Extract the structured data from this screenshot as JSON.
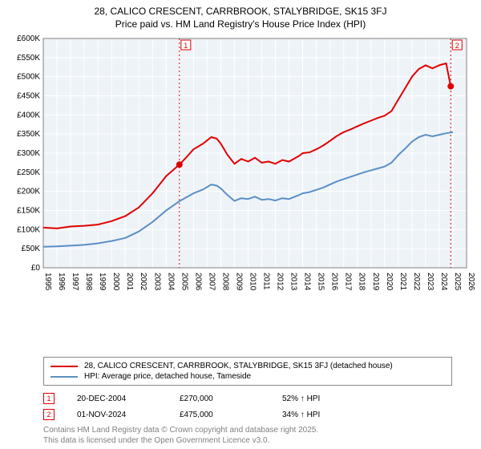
{
  "title_line1": "28, CALICO CRESCENT, CARRBROOK, STALYBRIDGE, SK15 3FJ",
  "title_line2": "Price paid vs. HM Land Registry's House Price Index (HPI)",
  "chart": {
    "type": "line",
    "background_color": "#ffffff",
    "plot_background_color": "#eef3f8",
    "grid_color": "#ffffff",
    "axis_color": "#808080",
    "x": {
      "min": 1995,
      "max": 2026,
      "ticks": [
        1995,
        1996,
        1997,
        1998,
        1999,
        2000,
        2001,
        2002,
        2003,
        2004,
        2005,
        2006,
        2007,
        2008,
        2009,
        2010,
        2011,
        2012,
        2013,
        2014,
        2015,
        2016,
        2017,
        2018,
        2019,
        2020,
        2021,
        2022,
        2023,
        2024,
        2025,
        2026
      ]
    },
    "y": {
      "min": 0,
      "max": 600000,
      "ticks": [
        0,
        50000,
        100000,
        150000,
        200000,
        250000,
        300000,
        350000,
        400000,
        450000,
        500000,
        550000,
        600000
      ],
      "tick_labels": [
        "£0",
        "£50K",
        "£100K",
        "£150K",
        "£200K",
        "£250K",
        "£300K",
        "£350K",
        "£400K",
        "£450K",
        "£500K",
        "£550K",
        "£600K"
      ]
    },
    "series": [
      {
        "id": "property",
        "color": "#e00000",
        "line_width": 2,
        "points": [
          [
            1995,
            105000
          ],
          [
            1996,
            103000
          ],
          [
            1997,
            108000
          ],
          [
            1998,
            110000
          ],
          [
            1999,
            113000
          ],
          [
            2000,
            122000
          ],
          [
            2001,
            135000
          ],
          [
            2002,
            158000
          ],
          [
            2003,
            195000
          ],
          [
            2004,
            240000
          ],
          [
            2004.97,
            270000
          ],
          [
            2005.5,
            290000
          ],
          [
            2006,
            310000
          ],
          [
            2006.7,
            325000
          ],
          [
            2007.3,
            342000
          ],
          [
            2007.7,
            338000
          ],
          [
            2008,
            325000
          ],
          [
            2008.5,
            295000
          ],
          [
            2009,
            272000
          ],
          [
            2009.5,
            285000
          ],
          [
            2010,
            278000
          ],
          [
            2010.5,
            288000
          ],
          [
            2011,
            275000
          ],
          [
            2011.5,
            278000
          ],
          [
            2012,
            272000
          ],
          [
            2012.5,
            282000
          ],
          [
            2013,
            278000
          ],
          [
            2013.7,
            292000
          ],
          [
            2014,
            300000
          ],
          [
            2014.5,
            302000
          ],
          [
            2015,
            310000
          ],
          [
            2015.5,
            320000
          ],
          [
            2016,
            332000
          ],
          [
            2016.5,
            345000
          ],
          [
            2017,
            355000
          ],
          [
            2017.5,
            362000
          ],
          [
            2018,
            370000
          ],
          [
            2018.5,
            378000
          ],
          [
            2019,
            385000
          ],
          [
            2019.5,
            392000
          ],
          [
            2020,
            398000
          ],
          [
            2020.5,
            410000
          ],
          [
            2021,
            440000
          ],
          [
            2021.5,
            470000
          ],
          [
            2022,
            500000
          ],
          [
            2022.5,
            520000
          ],
          [
            2023,
            530000
          ],
          [
            2023.5,
            522000
          ],
          [
            2024,
            530000
          ],
          [
            2024.5,
            535000
          ],
          [
            2024.84,
            475000
          ]
        ]
      },
      {
        "id": "hpi",
        "color": "#5b8fc7",
        "line_width": 2,
        "points": [
          [
            1995,
            55000
          ],
          [
            1996,
            56000
          ],
          [
            1997,
            58000
          ],
          [
            1998,
            60000
          ],
          [
            1999,
            64000
          ],
          [
            2000,
            70000
          ],
          [
            2001,
            78000
          ],
          [
            2002,
            95000
          ],
          [
            2003,
            120000
          ],
          [
            2004,
            150000
          ],
          [
            2005,
            175000
          ],
          [
            2006,
            195000
          ],
          [
            2006.7,
            205000
          ],
          [
            2007.3,
            218000
          ],
          [
            2007.7,
            215000
          ],
          [
            2008,
            208000
          ],
          [
            2008.5,
            190000
          ],
          [
            2009,
            175000
          ],
          [
            2009.5,
            182000
          ],
          [
            2010,
            180000
          ],
          [
            2010.5,
            186000
          ],
          [
            2011,
            178000
          ],
          [
            2011.5,
            180000
          ],
          [
            2012,
            176000
          ],
          [
            2012.5,
            182000
          ],
          [
            2013,
            180000
          ],
          [
            2013.7,
            190000
          ],
          [
            2014,
            195000
          ],
          [
            2014.5,
            198000
          ],
          [
            2015,
            204000
          ],
          [
            2015.5,
            210000
          ],
          [
            2016,
            218000
          ],
          [
            2016.5,
            226000
          ],
          [
            2017,
            232000
          ],
          [
            2017.5,
            238000
          ],
          [
            2018,
            244000
          ],
          [
            2018.5,
            250000
          ],
          [
            2019,
            255000
          ],
          [
            2019.5,
            260000
          ],
          [
            2020,
            265000
          ],
          [
            2020.5,
            275000
          ],
          [
            2021,
            295000
          ],
          [
            2021.5,
            312000
          ],
          [
            2022,
            330000
          ],
          [
            2022.5,
            342000
          ],
          [
            2023,
            348000
          ],
          [
            2023.5,
            344000
          ],
          [
            2024,
            348000
          ],
          [
            2024.5,
            352000
          ],
          [
            2025,
            355000
          ]
        ]
      }
    ],
    "markers": [
      {
        "n": "1",
        "x": 2004.97,
        "y": 270000,
        "color": "#e00000"
      },
      {
        "n": "2",
        "x": 2024.84,
        "y": 475000,
        "color": "#e00000"
      }
    ]
  },
  "legend": {
    "series1": {
      "color": "#e00000",
      "label": "28, CALICO CRESCENT, CARRBROOK, STALYBRIDGE, SK15 3FJ (detached house)"
    },
    "series2": {
      "color": "#5b8fc7",
      "label": "HPI: Average price, detached house, Tameside"
    }
  },
  "marker_rows": [
    {
      "n": "1",
      "color": "#e00000",
      "date": "20-DEC-2004",
      "price": "£270,000",
      "delta": "52% ↑ HPI"
    },
    {
      "n": "2",
      "color": "#e00000",
      "date": "01-NOV-2024",
      "price": "£475,000",
      "delta": "34% ↑ HPI"
    }
  ],
  "footer_line1": "Contains HM Land Registry data © Crown copyright and database right 2025.",
  "footer_line2": "This data is licensed under the Open Government Licence v3.0."
}
